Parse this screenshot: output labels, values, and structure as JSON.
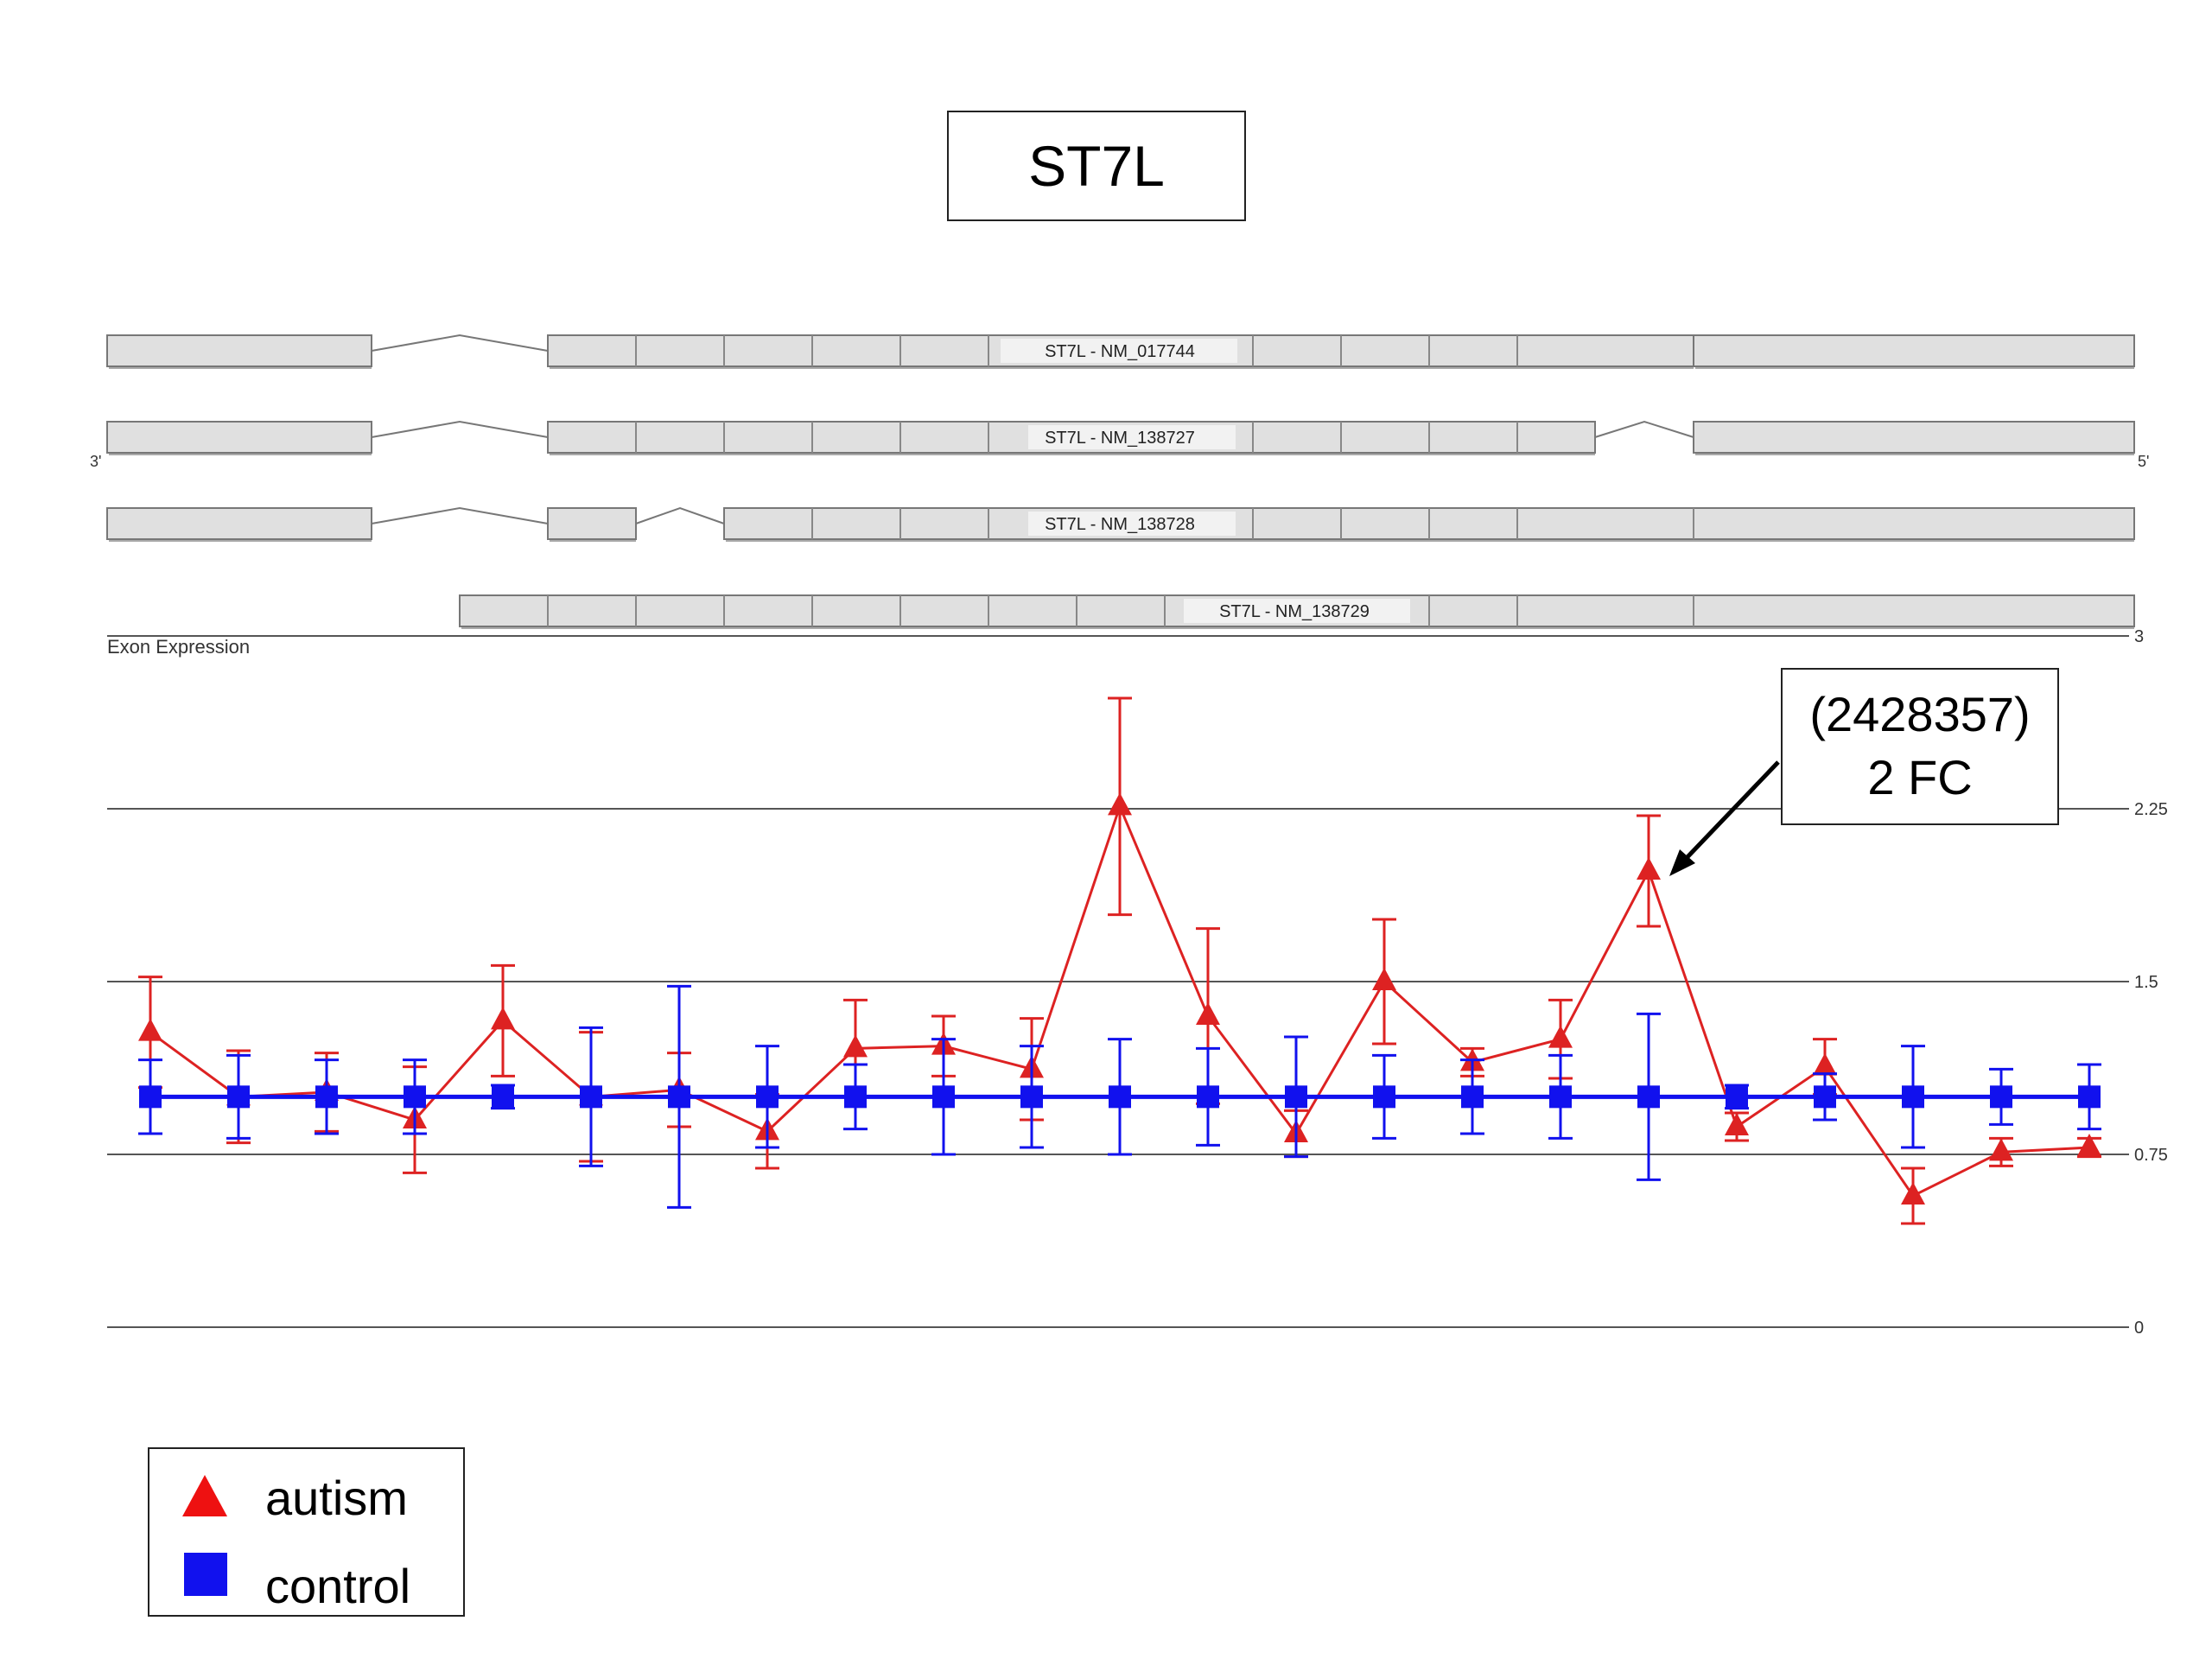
{
  "title": "ST7L",
  "transcripts": [
    {
      "label": "ST7L - NM_017744"
    },
    {
      "label": "ST7L - NM_138727"
    },
    {
      "label": "ST7L - NM_138728"
    },
    {
      "label": "ST7L - NM_138729"
    }
  ],
  "strand_left": "3'",
  "strand_right": "5'",
  "callout": {
    "line1": "(2428357)",
    "line2": "2 FC"
  },
  "legend": [
    {
      "label": "autism",
      "color": "#ee1111",
      "marker": "triangle"
    },
    {
      "label": "control",
      "color": "#1111ee",
      "marker": "square"
    }
  ],
  "chart_data": {
    "type": "line",
    "title": "Exon Expression",
    "ylim": [
      0,
      3
    ],
    "yticks": [
      0,
      0.75,
      1.5,
      2.25,
      3
    ],
    "ytick_labels": [
      "0",
      "0.75",
      "1.5",
      "2.25",
      "3"
    ],
    "grid": true,
    "legend_position": "bottom-left",
    "x": [
      1,
      2,
      3,
      4,
      5,
      6,
      7,
      8,
      9,
      10,
      11,
      12,
      13,
      14,
      15,
      16,
      17,
      18,
      19,
      20,
      21,
      22,
      23
    ],
    "series": [
      {
        "name": "autism",
        "color": "#dd2222",
        "marker": "triangle",
        "values": [
          1.28,
          1.0,
          1.02,
          0.9,
          1.33,
          1.0,
          1.03,
          0.85,
          1.21,
          1.22,
          1.12,
          2.26,
          1.35,
          0.84,
          1.5,
          1.15,
          1.25,
          1.98,
          0.87,
          1.13,
          0.57,
          0.76,
          0.78
        ],
        "err": [
          0.24,
          0.2,
          0.17,
          0.23,
          0.24,
          0.28,
          0.16,
          0.16,
          0.21,
          0.13,
          0.22,
          0.47,
          0.38,
          0.1,
          0.27,
          0.06,
          0.17,
          0.24,
          0.06,
          0.12,
          0.12,
          0.06,
          0.04
        ]
      },
      {
        "name": "control",
        "color": "#1111ee",
        "marker": "square",
        "values": [
          1.0,
          1.0,
          1.0,
          1.0,
          1.0,
          1.0,
          1.0,
          1.0,
          1.0,
          1.0,
          1.0,
          1.0,
          1.0,
          1.0,
          1.0,
          1.0,
          1.0,
          1.0,
          1.0,
          1.0,
          1.0,
          1.0,
          1.0
        ],
        "err": [
          0.16,
          0.18,
          0.16,
          0.16,
          0.05,
          0.3,
          0.48,
          0.22,
          0.14,
          0.25,
          0.22,
          0.25,
          0.21,
          0.26,
          0.18,
          0.16,
          0.18,
          0.36,
          0.05,
          0.1,
          0.22,
          0.12,
          0.14
        ]
      }
    ]
  }
}
